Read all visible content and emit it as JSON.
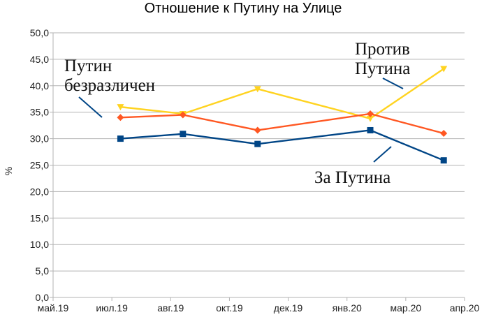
{
  "chart_data": {
    "type": "line",
    "title": "Отношение к Путину на Улице",
    "xlabel": "",
    "ylabel": "%",
    "x_ticks": [
      "май.19",
      "июл.19",
      "авг.19",
      "окт.19",
      "дек.19",
      "янв.20",
      "мар.20",
      "апр.20"
    ],
    "xlim": [
      "2019-05-01",
      "2020-04-01"
    ],
    "ylim": [
      0,
      50
    ],
    "y_ticks": [
      "0,0",
      "5,0",
      "10,0",
      "15,0",
      "20,0",
      "25,0",
      "30,0",
      "35,0",
      "40,0",
      "45,0",
      "50,0"
    ],
    "grid": "horizontal",
    "x": [
      "2019-06-25",
      "2019-08-15",
      "2019-10-15",
      "2020-01-15",
      "2020-03-15"
    ],
    "series": [
      {
        "key": "protiv",
        "color": "#FFD320",
        "marker": "triangle-down",
        "values": [
          36.0,
          34.7,
          39.4,
          33.8,
          43.2
        ]
      },
      {
        "key": "bezrazlichen",
        "color": "#FF5722",
        "marker": "diamond",
        "values": [
          34.0,
          34.5,
          31.6,
          34.7,
          31.0
        ]
      },
      {
        "key": "za",
        "color": "#004586",
        "marker": "square",
        "values": [
          30.0,
          30.9,
          29.0,
          31.6,
          25.9
        ]
      }
    ],
    "annotations": [
      {
        "lines": [
          "Против",
          "Путина"
        ],
        "series": "protiv"
      },
      {
        "lines": [
          "Путин",
          "безразличен"
        ],
        "series": "bezrazlichen"
      },
      {
        "lines": [
          "За Путина"
        ],
        "series": "za"
      }
    ]
  }
}
